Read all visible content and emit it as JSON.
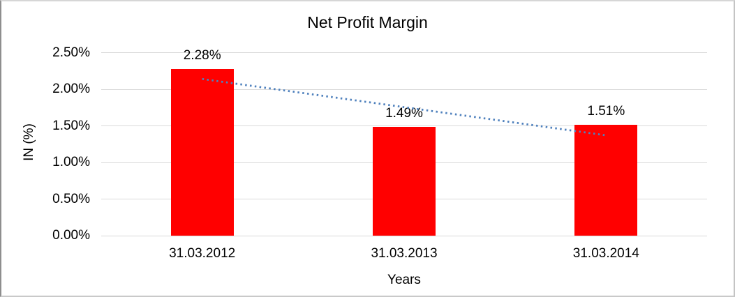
{
  "chart_data": {
    "type": "bar",
    "title": "Net Profit Margin",
    "xlabel": "Years",
    "ylabel": "IN (%)",
    "categories": [
      "31.03.2012",
      "31.03.2013",
      "31.03.2014"
    ],
    "series": [
      {
        "name": "Net Profit Margin",
        "values": [
          2.28,
          1.49,
          1.51
        ],
        "data_labels": [
          "2.28%",
          "1.49%",
          "1.51%"
        ],
        "color": "#ff0000"
      }
    ],
    "ylim": [
      0,
      2.5
    ],
    "yticks": [
      {
        "value": 2.5,
        "label": "2.50%"
      },
      {
        "value": 2.0,
        "label": "2.00%"
      },
      {
        "value": 1.5,
        "label": "1.50%"
      },
      {
        "value": 1.0,
        "label": "1.00%"
      },
      {
        "value": 0.5,
        "label": "0.50%"
      },
      {
        "value": 0.0,
        "label": "0.00%"
      }
    ],
    "grid": true,
    "legend": "none",
    "trendline": {
      "type": "linear",
      "style": "dotted",
      "color": "#4f81bd"
    },
    "colors": {
      "bar": "#ff0000",
      "trendline": "#4f81bd",
      "gridline": "#d9d9d9",
      "text": "#000000",
      "background": "#ffffff"
    }
  }
}
